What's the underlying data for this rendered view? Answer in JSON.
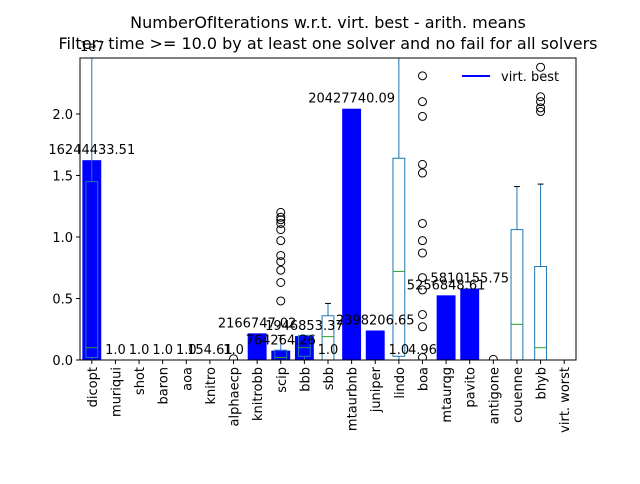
{
  "chart_data": {
    "type": "bar",
    "title": "NumberOfIterations w.r.t. virt. best - arith. means",
    "subtitle": "Filter: time >= 10.0 by at least one solver and no fail for all solvers",
    "y_offset_label": "1e7",
    "categories": [
      "dicopt",
      "muriqui",
      "shot",
      "baron",
      "aoa",
      "knitro",
      "alphaecp",
      "knitrobb",
      "scip",
      "bbb",
      "sbb",
      "mtaurbnb",
      "juniper",
      "lindo",
      "boa",
      "mtaurqg",
      "pavito",
      "antigone",
      "couenne",
      "bhyb",
      "virt. worst"
    ],
    "series": [
      {
        "name": "virt. best",
        "color": "#0000ff",
        "values": [
          16244433.51,
          1,
          1,
          1,
          1,
          154.61,
          1,
          2166747.02,
          764264.26,
          1946853.37,
          1,
          20427740.09,
          2398206.65,
          1,
          4.96,
          5256848.61,
          5810155.75,
          null,
          null,
          null,
          null
        ],
        "value_labels": [
          "16244433.51",
          "1.0",
          "1.0",
          "1.0",
          "1.0",
          "154.61",
          "1.0",
          "2166747.02",
          "764264.26",
          "1946853.37",
          "1.0",
          "20427740.09",
          "2398206.65",
          "1.0",
          "4.96",
          "5256848.61",
          "5810155.75",
          null,
          null,
          null,
          null
        ]
      }
    ],
    "boxes": [
      {
        "category": "dicopt",
        "whislo": 0,
        "q1": 200000,
        "med": 1000000,
        "q3": 14500000,
        "whishi": 30000000,
        "fliers": []
      },
      {
        "category": "alphaecp",
        "whislo": 0,
        "q1": 0,
        "med": 0,
        "q3": 0,
        "whishi": 0,
        "fliers": [
          100000
        ]
      },
      {
        "category": "scip",
        "whislo": 0,
        "q1": 0,
        "med": 200000,
        "q3": 800000,
        "whishi": 2000000,
        "fliers": [
          4800000,
          6300000,
          7300000,
          8000000,
          8500000,
          9700000,
          10600000,
          11100000,
          11400000,
          11600000,
          12000000
        ]
      },
      {
        "category": "bbb",
        "whislo": 0,
        "q1": 300000,
        "med": 1000000,
        "q3": 2000000,
        "whishi": 2000000,
        "fliers": []
      },
      {
        "category": "sbb",
        "whislo": 0,
        "q1": 0,
        "med": 1900000,
        "q3": 3600000,
        "whishi": 4600000,
        "fliers": []
      },
      {
        "category": "lindo",
        "whislo": 0,
        "q1": 300000,
        "med": 7200000,
        "q3": 16400000,
        "whishi": 30000000,
        "fliers": []
      },
      {
        "category": "boa",
        "whislo": 0,
        "q1": 0,
        "med": 0,
        "q3": 0,
        "whishi": 0,
        "fliers": [
          200000,
          2700000,
          3700000,
          5700000,
          6700000,
          8700000,
          9700000,
          11100000,
          15200000,
          15900000,
          19800000,
          21000000,
          23100000
        ]
      },
      {
        "category": "antigone",
        "whislo": 0,
        "q1": 0,
        "med": 0,
        "q3": 0,
        "whishi": 0,
        "fliers": [
          50000
        ]
      },
      {
        "category": "couenne",
        "whislo": 0,
        "q1": 0,
        "med": 2900000,
        "q3": 10600000,
        "whishi": 14100000,
        "fliers": []
      },
      {
        "category": "bhyb",
        "whislo": 0,
        "q1": 0,
        "med": 1000000,
        "q3": 7600000,
        "whishi": 14300000,
        "fliers": [
          20200000,
          20500000,
          21000000,
          21400000,
          23800000
        ]
      }
    ],
    "box_color": "#1f77b4",
    "median_color": "#2ca02c",
    "ylim": [
      0,
      24550000
    ],
    "yticks": [
      {
        "value": 0,
        "label": "0.0"
      },
      {
        "value": 5000000,
        "label": "0.5"
      },
      {
        "value": 10000000,
        "label": "1.0"
      },
      {
        "value": 15000000,
        "label": "1.5"
      },
      {
        "value": 20000000,
        "label": "2.0"
      }
    ],
    "legend": "upper right"
  }
}
